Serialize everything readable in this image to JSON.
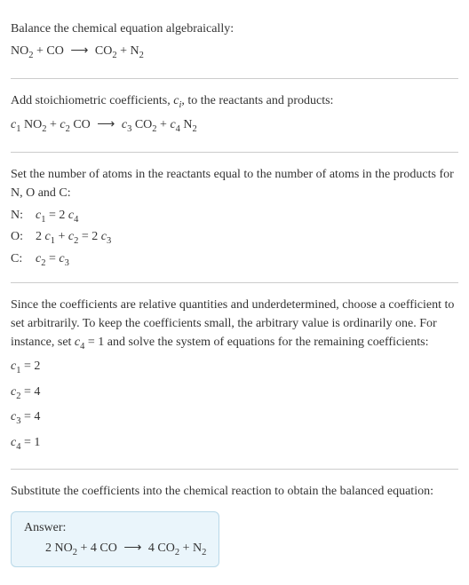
{
  "colors": {
    "text": "#333333",
    "background": "#ffffff",
    "divider": "#cccccc",
    "answer_bg": "#eaf5fb",
    "answer_border": "#b8d8e8"
  },
  "typography": {
    "body_fontsize": 14,
    "sub_scale": 0.75,
    "font_family": "Georgia, Times New Roman, serif"
  },
  "section1": {
    "title": "Balance the chemical equation algebraically:",
    "reaction": {
      "r1": "NO",
      "r1_sub": "2",
      "plus1": " + ",
      "r2": "CO",
      "arrow": " ⟶ ",
      "p1": "CO",
      "p1_sub": "2",
      "plus2": " + ",
      "p2": "N",
      "p2_sub": "2"
    }
  },
  "section2": {
    "title_a": "Add stoichiometric coefficients, ",
    "title_ci": "c",
    "title_ci_sub": "i",
    "title_b": ", to the reactants and products:",
    "reaction": {
      "c1": "c",
      "c1_sub": "1",
      "sp1": " ",
      "r1": "NO",
      "r1_sub": "2",
      "plus1": " + ",
      "c2": "c",
      "c2_sub": "2",
      "sp2": " ",
      "r2": "CO",
      "arrow": " ⟶ ",
      "c3": "c",
      "c3_sub": "3",
      "sp3": " ",
      "p1": "CO",
      "p1_sub": "2",
      "plus2": " + ",
      "c4": "c",
      "c4_sub": "4",
      "sp4": " ",
      "p2": "N",
      "p2_sub": "2"
    }
  },
  "section3": {
    "title": "Set the number of atoms in the reactants equal to the number of atoms in the products for N, O and C:",
    "rows": [
      {
        "label": "N:",
        "lhs_c": "c",
        "lhs_sub": "1",
        "eq": " = 2 ",
        "rhs_c": "c",
        "rhs_sub": "4"
      },
      {
        "label": "O:",
        "lhs_pre": "2 ",
        "lhs_c": "c",
        "lhs_sub": "1",
        "mid": " + ",
        "lhs2_c": "c",
        "lhs2_sub": "2",
        "eq": " = 2 ",
        "rhs_c": "c",
        "rhs_sub": "3"
      },
      {
        "label": "C:",
        "lhs_c": "c",
        "lhs_sub": "2",
        "eq": " = ",
        "rhs_c": "c",
        "rhs_sub": "3"
      }
    ]
  },
  "section4": {
    "title_a": "Since the coefficients are relative quantities and underdetermined, choose a coefficient to set arbitrarily. To keep the coefficients small, the arbitrary value is ordinarily one. For instance, set ",
    "title_c": "c",
    "title_c_sub": "4",
    "title_b": " = 1 and solve the system of equations for the remaining coefficients:",
    "solutions": [
      {
        "c": "c",
        "sub": "1",
        "val": " = 2"
      },
      {
        "c": "c",
        "sub": "2",
        "val": " = 4"
      },
      {
        "c": "c",
        "sub": "3",
        "val": " = 4"
      },
      {
        "c": "c",
        "sub": "4",
        "val": " = 1"
      }
    ]
  },
  "section5": {
    "title": "Substitute the coefficients into the chemical reaction to obtain the balanced equation:",
    "answer_label": "Answer:",
    "answer": {
      "n1": "2 ",
      "r1": "NO",
      "r1_sub": "2",
      "plus1": " + ",
      "n2": "4 ",
      "r2": "CO",
      "arrow": " ⟶ ",
      "n3": "4 ",
      "p1": "CO",
      "p1_sub": "2",
      "plus2": " + ",
      "p2": "N",
      "p2_sub": "2"
    }
  }
}
